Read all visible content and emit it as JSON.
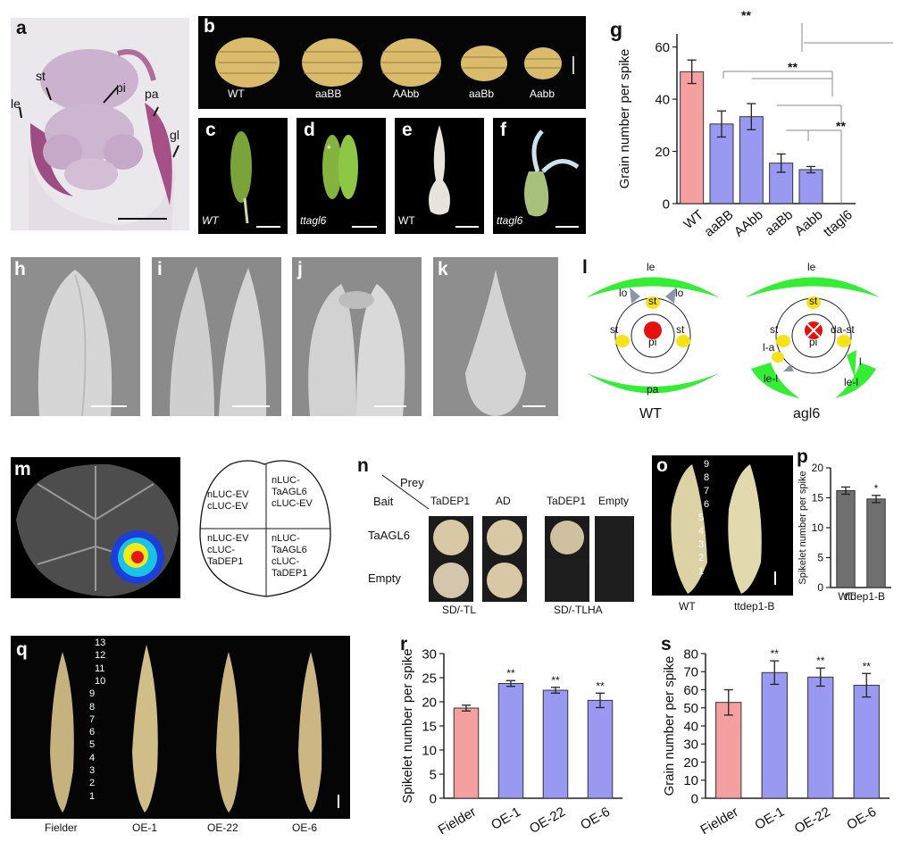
{
  "panels": {
    "a": {
      "label": "a",
      "annotations": [
        "le",
        "st",
        "pi",
        "pa",
        "gl"
      ]
    },
    "b": {
      "label": "b",
      "genotypes": [
        "WT",
        "aaBB",
        "AAbb",
        "aaBb",
        "Aabb"
      ]
    },
    "c": {
      "label": "c",
      "caption": "WT"
    },
    "d": {
      "label": "d",
      "caption": "ttagl6",
      "star": "*"
    },
    "e": {
      "label": "e",
      "caption": "WT"
    },
    "f": {
      "label": "f",
      "caption": "ttagl6"
    },
    "g": {
      "label": "g",
      "significance": [
        "**",
        "**",
        "**"
      ]
    },
    "h": {
      "label": "h"
    },
    "i": {
      "label": "i"
    },
    "j": {
      "label": "j"
    },
    "k": {
      "label": "k"
    },
    "l": {
      "label": "l",
      "wt": {
        "title": "WT",
        "le": "le",
        "pa": "pa",
        "lo_left": "lo",
        "lo_right": "lo",
        "st_top": "st",
        "st_left": "st",
        "st_right": "st",
        "pi": "pi"
      },
      "agl6": {
        "title": "agl6",
        "le": "le",
        "st_top": "st",
        "st_left": "st",
        "da_st": "da-st",
        "pi": "pi",
        "l_a": "l-a",
        "l": "l",
        "le_l_left": "le-l",
        "le_l_right": "le-l"
      }
    },
    "m": {
      "label": "m",
      "leaf_quadrants": [
        "nLUC-EV\ncLUC-EV",
        "nLUC-\nTaAGL6\ncLUC-EV",
        "nLUC-EV\ncLUC-\nTaDEP1",
        "nLUC-\nTaAGL6\ncLUC-\nTaDEP1"
      ]
    },
    "n": {
      "label": "n",
      "prey": "Prey",
      "bait": "Bait",
      "columns": [
        "TaDEP1",
        "AD",
        "TaDEP1",
        "Empty"
      ],
      "rows": [
        "TaAGL6",
        "Empty"
      ],
      "media": [
        "SD/-TL",
        "SD/-TLHA"
      ]
    },
    "o": {
      "label": "o",
      "wt": "WT",
      "mutant": "ttdep1-B",
      "numbers": [
        "9",
        "8",
        "7",
        "6",
        "5",
        "4",
        "3",
        "2",
        "1"
      ]
    },
    "p": {
      "label": "p"
    },
    "q": {
      "label": "q",
      "lines": [
        "Fielder",
        "OE-1",
        "OE-22",
        "OE-6"
      ],
      "numbers": [
        "13",
        "12",
        "11",
        "10",
        "9",
        "8",
        "7",
        "6",
        "5",
        "4",
        "3",
        "2",
        "1"
      ]
    },
    "r": {
      "label": "r"
    },
    "s": {
      "label": "s"
    }
  },
  "colors": {
    "wt_bar": "#f4a0a0",
    "mutant_bar": "#9999f2",
    "grey_bar": "#6f6f6f",
    "organ_green": "#33ee33",
    "organ_yellow": "#f7e21a",
    "pistil_red": "#e51010"
  },
  "chart_data": [
    {
      "id": "g",
      "type": "bar",
      "categories": [
        "WT",
        "aaBB",
        "AAbb",
        "aaBb",
        "Aabb",
        "ttagl6"
      ],
      "values": [
        50.5,
        30.5,
        33.3,
        15.5,
        13,
        0
      ],
      "errors": [
        4.5,
        5,
        5,
        3.5,
        1.2,
        0
      ],
      "ylabel": "Grain number per spike",
      "yticks": [
        0,
        20,
        40,
        60
      ],
      "ylim": [
        0,
        65
      ],
      "significance": [
        "**",
        "**",
        "**"
      ]
    },
    {
      "id": "p",
      "type": "bar",
      "categories": [
        "WT",
        "ttdep1-B"
      ],
      "values": [
        16.2,
        14.8
      ],
      "errors": [
        0.6,
        0.6
      ],
      "ylabel": "Spikelet number per spike",
      "yticks": [
        0,
        5,
        10,
        15,
        20
      ],
      "ylim": [
        0,
        20
      ],
      "annotations": [
        "",
        "*"
      ]
    },
    {
      "id": "r",
      "type": "bar",
      "categories": [
        "Fielder",
        "OE-1",
        "OE-22",
        "OE-6"
      ],
      "values": [
        18.7,
        23.8,
        22.4,
        20.3
      ],
      "errors": [
        0.6,
        0.6,
        0.6,
        1.5
      ],
      "ylabel": "Spikelet number per spike",
      "yticks": [
        0,
        5,
        10,
        15,
        20,
        25,
        30
      ],
      "ylim": [
        0,
        30
      ],
      "annotations": [
        "",
        "**",
        "**",
        "**"
      ]
    },
    {
      "id": "s",
      "type": "bar",
      "categories": [
        "Fielder",
        "OE-1",
        "OE-22",
        "OE-6"
      ],
      "values": [
        53,
        69.5,
        67,
        62.5
      ],
      "errors": [
        7,
        6.5,
        5,
        6.5
      ],
      "ylabel": "Grain number per spike",
      "yticks": [
        0,
        10,
        20,
        30,
        40,
        50,
        60,
        70,
        80
      ],
      "ylim": [
        0,
        80
      ],
      "annotations": [
        "",
        "**",
        "**",
        "**"
      ]
    }
  ]
}
